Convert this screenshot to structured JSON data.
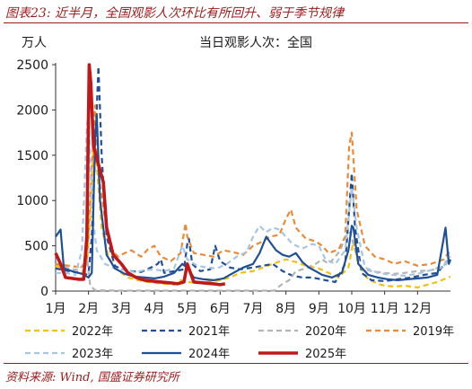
{
  "figure": {
    "title": "图表23:  近半月，全国观影人次环比有所回升、弱于季节规律",
    "source": "资料来源: Wind, 国盛证券研究所"
  },
  "chart_data": {
    "type": "line",
    "title": "当日观影人次：全国",
    "ylabel": "万人",
    "ylim": [
      0,
      2500
    ],
    "yticks": [
      0,
      500,
      1000,
      1500,
      2000,
      2500
    ],
    "xlim": [
      1,
      13
    ],
    "x_tick_labels": [
      "1月",
      "2月",
      "3月",
      "4月",
      "5月",
      "6月",
      "7月",
      "8月",
      "9月",
      "10月",
      "11月",
      "12月"
    ],
    "grid": false,
    "legend_position": "bottom",
    "series": [
      {
        "name": "2022年",
        "color": "#f2c010",
        "dash": "6,4",
        "width": 2.2,
        "points": [
          [
            1.0,
            280
          ],
          [
            1.4,
            220
          ],
          [
            1.8,
            200
          ],
          [
            1.95,
            300
          ],
          [
            2.05,
            800
          ],
          [
            2.15,
            1650
          ],
          [
            2.25,
            1400
          ],
          [
            2.4,
            700
          ],
          [
            2.6,
            380
          ],
          [
            2.8,
            260
          ],
          [
            3.0,
            200
          ],
          [
            3.2,
            150
          ],
          [
            3.5,
            120
          ],
          [
            3.8,
            100
          ],
          [
            4.0,
            90
          ],
          [
            4.3,
            80
          ],
          [
            4.6,
            70
          ],
          [
            4.8,
            120
          ],
          [
            5.0,
            100
          ],
          [
            5.3,
            90
          ],
          [
            5.6,
            100
          ],
          [
            6.0,
            120
          ],
          [
            6.3,
            150
          ],
          [
            6.6,
            200
          ],
          [
            7.0,
            220
          ],
          [
            7.3,
            260
          ],
          [
            7.6,
            300
          ],
          [
            8.0,
            350
          ],
          [
            8.3,
            320
          ],
          [
            8.6,
            280
          ],
          [
            9.0,
            250
          ],
          [
            9.3,
            200
          ],
          [
            9.6,
            150
          ],
          [
            9.9,
            260
          ],
          [
            10.05,
            550
          ],
          [
            10.2,
            300
          ],
          [
            10.5,
            130
          ],
          [
            10.8,
            80
          ],
          [
            11.0,
            60
          ],
          [
            11.3,
            50
          ],
          [
            11.6,
            60
          ],
          [
            12.0,
            40
          ],
          [
            12.3,
            70
          ],
          [
            12.6,
            100
          ],
          [
            13.0,
            160
          ]
        ]
      },
      {
        "name": "2021年",
        "color": "#1f4f96",
        "dash": "6,4",
        "width": 2.2,
        "points": [
          [
            1.0,
            250
          ],
          [
            1.4,
            220
          ],
          [
            1.7,
            200
          ],
          [
            1.9,
            180
          ],
          [
            2.0,
            200
          ],
          [
            2.1,
            600
          ],
          [
            2.25,
            2000
          ],
          [
            2.3,
            2480
          ],
          [
            2.4,
            1500
          ],
          [
            2.55,
            600
          ],
          [
            2.8,
            280
          ],
          [
            3.0,
            240
          ],
          [
            3.3,
            220
          ],
          [
            3.6,
            210
          ],
          [
            3.9,
            260
          ],
          [
            4.1,
            300
          ],
          [
            4.2,
            350
          ],
          [
            4.3,
            200
          ],
          [
            4.6,
            220
          ],
          [
            4.9,
            240
          ],
          [
            5.0,
            520
          ],
          [
            5.05,
            580
          ],
          [
            5.15,
            300
          ],
          [
            5.4,
            220
          ],
          [
            5.7,
            240
          ],
          [
            5.85,
            500
          ],
          [
            6.0,
            330
          ],
          [
            6.3,
            260
          ],
          [
            6.6,
            240
          ],
          [
            7.0,
            260
          ],
          [
            7.3,
            280
          ],
          [
            7.6,
            300
          ],
          [
            7.9,
            220
          ],
          [
            8.2,
            170
          ],
          [
            8.5,
            150
          ],
          [
            8.8,
            150
          ],
          [
            9.2,
            120
          ],
          [
            9.5,
            100
          ],
          [
            9.8,
            300
          ],
          [
            10.0,
            1300
          ],
          [
            10.1,
            700
          ],
          [
            10.3,
            200
          ],
          [
            10.6,
            120
          ],
          [
            11.0,
            110
          ],
          [
            11.4,
            130
          ],
          [
            11.8,
            150
          ],
          [
            12.2,
            180
          ],
          [
            12.6,
            200
          ],
          [
            12.9,
            330
          ],
          [
            13.0,
            300
          ]
        ]
      },
      {
        "name": "2020年",
        "color": "#b4b4b4",
        "dash": "6,4",
        "width": 2.2,
        "points": [
          [
            1.0,
            300
          ],
          [
            1.4,
            250
          ],
          [
            1.7,
            230
          ],
          [
            1.85,
            300
          ],
          [
            1.95,
            380
          ],
          [
            2.05,
            60
          ],
          [
            2.2,
            10
          ],
          [
            3.0,
            5
          ],
          [
            4.0,
            5
          ],
          [
            5.0,
            5
          ],
          [
            6.0,
            5
          ],
          [
            7.0,
            5
          ],
          [
            7.65,
            5
          ],
          [
            7.75,
            40
          ],
          [
            7.9,
            80
          ],
          [
            8.1,
            120
          ],
          [
            8.3,
            220
          ],
          [
            8.6,
            250
          ],
          [
            8.9,
            300
          ],
          [
            9.1,
            350
          ],
          [
            9.3,
            300
          ],
          [
            9.5,
            380
          ],
          [
            9.65,
            450
          ],
          [
            9.8,
            600
          ],
          [
            9.95,
            650
          ],
          [
            10.1,
            450
          ],
          [
            10.3,
            250
          ],
          [
            10.6,
            220
          ],
          [
            11.0,
            200
          ],
          [
            11.3,
            190
          ],
          [
            11.6,
            200
          ],
          [
            12.0,
            220
          ],
          [
            12.4,
            230
          ],
          [
            12.8,
            260
          ],
          [
            13.0,
            380
          ]
        ]
      },
      {
        "name": "2019年",
        "color": "#ea8a36",
        "dash": "6,4",
        "width": 2.2,
        "points": [
          [
            1.0,
            300
          ],
          [
            1.4,
            280
          ],
          [
            1.8,
            260
          ],
          [
            1.95,
            320
          ],
          [
            2.1,
            1350
          ],
          [
            2.2,
            2050
          ],
          [
            2.3,
            1300
          ],
          [
            2.5,
            800
          ],
          [
            2.7,
            450
          ],
          [
            2.9,
            380
          ],
          [
            3.1,
            420
          ],
          [
            3.3,
            450
          ],
          [
            3.6,
            380
          ],
          [
            3.8,
            460
          ],
          [
            4.0,
            500
          ],
          [
            4.2,
            380
          ],
          [
            4.5,
            330
          ],
          [
            4.8,
            420
          ],
          [
            4.95,
            750
          ],
          [
            5.0,
            600
          ],
          [
            5.2,
            420
          ],
          [
            5.5,
            400
          ],
          [
            5.8,
            380
          ],
          [
            6.1,
            450
          ],
          [
            6.4,
            430
          ],
          [
            6.7,
            400
          ],
          [
            7.0,
            500
          ],
          [
            7.3,
            550
          ],
          [
            7.5,
            600
          ],
          [
            7.8,
            620
          ],
          [
            8.0,
            800
          ],
          [
            8.15,
            900
          ],
          [
            8.3,
            700
          ],
          [
            8.6,
            580
          ],
          [
            8.9,
            550
          ],
          [
            9.1,
            500
          ],
          [
            9.3,
            420
          ],
          [
            9.6,
            460
          ],
          [
            9.8,
            600
          ],
          [
            9.92,
            1600
          ],
          [
            10.0,
            1750
          ],
          [
            10.15,
            900
          ],
          [
            10.4,
            500
          ],
          [
            10.7,
            380
          ],
          [
            11.0,
            350
          ],
          [
            11.3,
            300
          ],
          [
            11.6,
            330
          ],
          [
            12.0,
            280
          ],
          [
            12.4,
            300
          ],
          [
            12.8,
            350
          ],
          [
            13.0,
            460
          ]
        ]
      },
      {
        "name": "2023年",
        "color": "#a8c6e2",
        "dash": "6,4",
        "width": 2.2,
        "points": [
          [
            1.0,
            200
          ],
          [
            1.3,
            200
          ],
          [
            1.6,
            180
          ],
          [
            1.8,
            450
          ],
          [
            1.95,
            1800
          ],
          [
            2.0,
            2050
          ],
          [
            2.1,
            900
          ],
          [
            2.25,
            450
          ],
          [
            2.5,
            300
          ],
          [
            2.8,
            250
          ],
          [
            3.1,
            230
          ],
          [
            3.4,
            210
          ],
          [
            3.7,
            230
          ],
          [
            4.0,
            240
          ],
          [
            4.3,
            220
          ],
          [
            4.6,
            250
          ],
          [
            4.85,
            500
          ],
          [
            5.0,
            350
          ],
          [
            5.3,
            280
          ],
          [
            5.6,
            260
          ],
          [
            5.9,
            250
          ],
          [
            6.2,
            300
          ],
          [
            6.5,
            380
          ],
          [
            6.8,
            430
          ],
          [
            7.0,
            600
          ],
          [
            7.2,
            720
          ],
          [
            7.4,
            650
          ],
          [
            7.6,
            700
          ],
          [
            7.8,
            680
          ],
          [
            8.0,
            600
          ],
          [
            8.2,
            520
          ],
          [
            8.5,
            470
          ],
          [
            8.8,
            520
          ],
          [
            9.0,
            500
          ],
          [
            9.2,
            350
          ],
          [
            9.5,
            300
          ],
          [
            9.8,
            450
          ],
          [
            10.0,
            1150
          ],
          [
            10.15,
            700
          ],
          [
            10.4,
            260
          ],
          [
            10.8,
            200
          ],
          [
            11.2,
            180
          ],
          [
            11.6,
            170
          ],
          [
            12.0,
            190
          ],
          [
            12.4,
            230
          ],
          [
            12.8,
            280
          ],
          [
            13.0,
            460
          ]
        ]
      },
      {
        "name": "2024年",
        "color": "#1f4f96",
        "dash": "",
        "width": 2.2,
        "points": [
          [
            1.0,
            600
          ],
          [
            1.15,
            680
          ],
          [
            1.25,
            250
          ],
          [
            1.5,
            220
          ],
          [
            1.8,
            190
          ],
          [
            2.0,
            150
          ],
          [
            2.1,
            200
          ],
          [
            2.2,
            1700
          ],
          [
            2.25,
            1950
          ],
          [
            2.35,
            1000
          ],
          [
            2.55,
            400
          ],
          [
            2.8,
            250
          ],
          [
            3.1,
            190
          ],
          [
            3.4,
            160
          ],
          [
            3.7,
            150
          ],
          [
            4.0,
            140
          ],
          [
            4.3,
            160
          ],
          [
            4.6,
            200
          ],
          [
            4.85,
            300
          ],
          [
            5.0,
            260
          ],
          [
            5.2,
            150
          ],
          [
            5.5,
            130
          ],
          [
            5.8,
            120
          ],
          [
            6.1,
            140
          ],
          [
            6.4,
            200
          ],
          [
            6.7,
            260
          ],
          [
            7.0,
            300
          ],
          [
            7.2,
            420
          ],
          [
            7.4,
            600
          ],
          [
            7.5,
            550
          ],
          [
            7.7,
            450
          ],
          [
            7.9,
            400
          ],
          [
            8.1,
            380
          ],
          [
            8.3,
            420
          ],
          [
            8.5,
            320
          ],
          [
            8.7,
            260
          ],
          [
            8.9,
            220
          ],
          [
            9.1,
            180
          ],
          [
            9.4,
            150
          ],
          [
            9.7,
            200
          ],
          [
            9.9,
            450
          ],
          [
            10.0,
            720
          ],
          [
            10.05,
            700
          ],
          [
            10.2,
            300
          ],
          [
            10.5,
            180
          ],
          [
            10.8,
            150
          ],
          [
            11.1,
            130
          ],
          [
            11.4,
            120
          ],
          [
            11.7,
            130
          ],
          [
            12.0,
            140
          ],
          [
            12.3,
            150
          ],
          [
            12.6,
            180
          ],
          [
            12.85,
            700
          ],
          [
            12.95,
            300
          ],
          [
            13.0,
            350
          ]
        ]
      },
      {
        "name": "2025年",
        "color": "#c01818",
        "dash": "",
        "width": 3.6,
        "points": [
          [
            1.0,
            420
          ],
          [
            1.15,
            300
          ],
          [
            1.3,
            150
          ],
          [
            1.5,
            140
          ],
          [
            1.7,
            130
          ],
          [
            1.85,
            130
          ],
          [
            1.95,
            600
          ],
          [
            2.02,
            2500
          ],
          [
            2.07,
            2300
          ],
          [
            2.15,
            1600
          ],
          [
            2.3,
            1400
          ],
          [
            2.45,
            1200
          ],
          [
            2.55,
            700
          ],
          [
            2.75,
            400
          ],
          [
            3.0,
            300
          ],
          [
            3.2,
            200
          ],
          [
            3.45,
            150
          ],
          [
            3.7,
            120
          ],
          [
            3.95,
            110
          ],
          [
            4.2,
            100
          ],
          [
            4.5,
            90
          ],
          [
            4.7,
            80
          ],
          [
            4.9,
            100
          ],
          [
            5.0,
            300
          ],
          [
            5.05,
            250
          ],
          [
            5.2,
            100
          ],
          [
            5.5,
            90
          ],
          [
            5.8,
            80
          ],
          [
            6.0,
            70
          ],
          [
            6.15,
            80
          ]
        ]
      }
    ]
  }
}
